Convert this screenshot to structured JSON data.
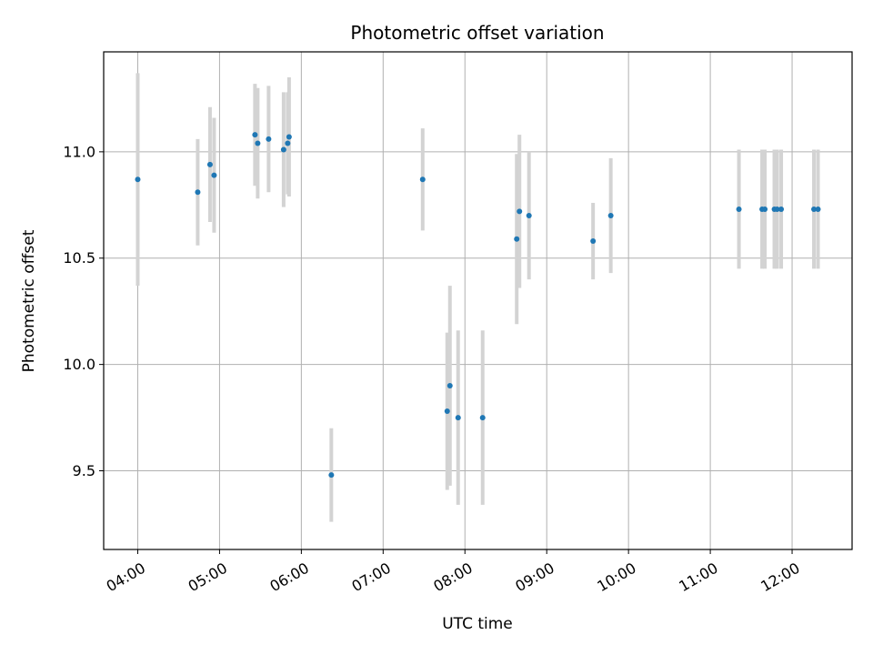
{
  "chart_data": {
    "type": "scatter",
    "title": "Photometric offset variation",
    "xlabel": "UTC time",
    "ylabel": "Photometric offset",
    "xlim": [
      "03:35",
      "12:44"
    ],
    "ylim": [
      9.13,
      11.47
    ],
    "xticks": [
      "04:00",
      "05:00",
      "06:00",
      "07:00",
      "08:00",
      "09:00",
      "10:00",
      "11:00",
      "12:00"
    ],
    "yticks": [
      9.5,
      10.0,
      10.5,
      11.0
    ],
    "ytick_labels": [
      "9.5",
      "10.0",
      "10.5",
      "11.0"
    ],
    "grid": true,
    "colors": {
      "marker": "#1f77b4",
      "errorbar": "#d3d3d3",
      "grid": "#b0b0b0"
    },
    "points": [
      {
        "x": "04:00",
        "y": 10.87,
        "yerr": 0.5
      },
      {
        "x": "04:44",
        "y": 10.81,
        "yerr": 0.25
      },
      {
        "x": "04:53",
        "y": 10.94,
        "yerr": 0.27
      },
      {
        "x": "04:56",
        "y": 10.89,
        "yerr": 0.27
      },
      {
        "x": "05:26",
        "y": 11.08,
        "yerr": 0.24
      },
      {
        "x": "05:28",
        "y": 11.04,
        "yerr": 0.26
      },
      {
        "x": "05:36",
        "y": 11.06,
        "yerr": 0.25
      },
      {
        "x": "05:47",
        "y": 11.01,
        "yerr": 0.27
      },
      {
        "x": "05:50",
        "y": 11.04,
        "yerr": 0.24
      },
      {
        "x": "05:51",
        "y": 11.07,
        "yerr": 0.28
      },
      {
        "x": "06:22",
        "y": 9.48,
        "yerr": 0.22
      },
      {
        "x": "07:29",
        "y": 10.87,
        "yerr": 0.24
      },
      {
        "x": "07:47",
        "y": 9.78,
        "yerr": 0.37
      },
      {
        "x": "07:49",
        "y": 9.9,
        "yerr": 0.47
      },
      {
        "x": "07:55",
        "y": 9.75,
        "yerr": 0.41
      },
      {
        "x": "08:13",
        "y": 9.75,
        "yerr": 0.41
      },
      {
        "x": "08:38",
        "y": 10.59,
        "yerr": 0.4
      },
      {
        "x": "08:40",
        "y": 10.72,
        "yerr": 0.36
      },
      {
        "x": "08:47",
        "y": 10.7,
        "yerr": 0.3
      },
      {
        "x": "09:34",
        "y": 10.58,
        "yerr": 0.18
      },
      {
        "x": "09:47",
        "y": 10.7,
        "yerr": 0.27
      },
      {
        "x": "11:21",
        "y": 10.73,
        "yerr": 0.28
      },
      {
        "x": "11:38",
        "y": 10.73,
        "yerr": 0.28
      },
      {
        "x": "11:40",
        "y": 10.73,
        "yerr": 0.28
      },
      {
        "x": "11:47",
        "y": 10.73,
        "yerr": 0.28
      },
      {
        "x": "11:49",
        "y": 10.73,
        "yerr": 0.28
      },
      {
        "x": "11:52",
        "y": 10.73,
        "yerr": 0.28
      },
      {
        "x": "12:16",
        "y": 10.73,
        "yerr": 0.28
      },
      {
        "x": "12:19",
        "y": 10.73,
        "yerr": 0.28
      }
    ]
  }
}
